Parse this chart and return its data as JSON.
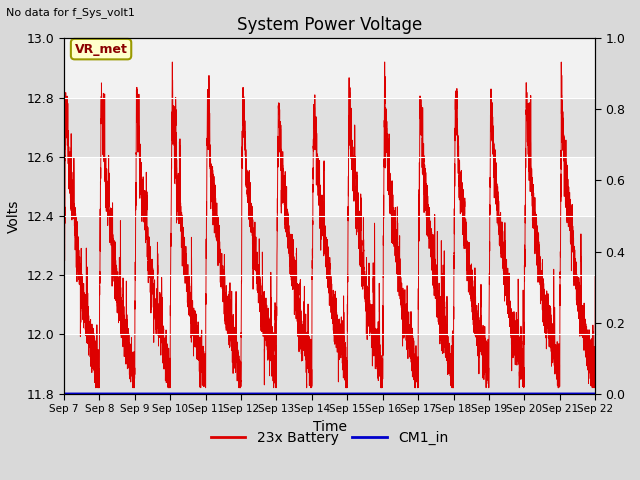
{
  "title": "System Power Voltage",
  "top_left_text": "No data for f_Sys_volt1",
  "ylabel_left": "Volts",
  "xlabel": "Time",
  "ylim_left": [
    11.8,
    13.0
  ],
  "ylim_right": [
    0.0,
    1.0
  ],
  "yticks_left": [
    11.8,
    12.0,
    12.2,
    12.4,
    12.6,
    12.8,
    13.0
  ],
  "yticks_right": [
    0.0,
    0.2,
    0.4,
    0.6,
    0.8,
    1.0
  ],
  "xtick_labels": [
    "Sep 7",
    "Sep 8",
    "Sep 9",
    "Sep 10",
    "Sep 11",
    "Sep 12",
    "Sep 13",
    "Sep 14",
    "Sep 15",
    "Sep 16",
    "Sep 17",
    "Sep 18",
    "Sep 19",
    "Sep 20",
    "Sep 21",
    "Sep 22"
  ],
  "bg_color": "#d9d9d9",
  "plot_bg_light": "#f2f2f2",
  "plot_bg_dark": "#e0e0e0",
  "battery_color": "#dd0000",
  "cm1_color": "#0000cc",
  "legend_labels": [
    "23x Battery",
    "CM1_in"
  ],
  "annotation_text": "VR_met",
  "n_points": 8000,
  "n_days": 15
}
